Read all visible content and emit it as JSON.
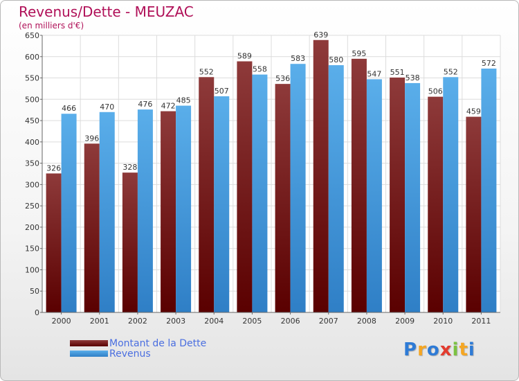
{
  "chart_data": {
    "type": "bar",
    "title": "Revenus/Dette - MEUZAC",
    "subtitle": "(en milliers d'€)",
    "categories": [
      "2000",
      "2001",
      "2002",
      "2003",
      "2004",
      "2005",
      "2006",
      "2007",
      "2008",
      "2009",
      "2010",
      "2011"
    ],
    "series": [
      {
        "name": "Montant de la Dette",
        "color": "#7a1a1a",
        "values": [
          326,
          396,
          328,
          472,
          552,
          589,
          536,
          639,
          595,
          551,
          506,
          459
        ]
      },
      {
        "name": "Revenus",
        "color": "#4a9ee0",
        "values": [
          466,
          470,
          476,
          485,
          507,
          558,
          583,
          580,
          547,
          538,
          552,
          572
        ]
      }
    ],
    "ylim": [
      0,
      650
    ],
    "yticks": [
      0,
      50,
      100,
      150,
      200,
      250,
      300,
      350,
      400,
      450,
      500,
      550,
      600,
      650
    ],
    "grid": true,
    "legend_position": "bottom-left"
  },
  "logo": {
    "letters": [
      "P",
      "r",
      "o",
      "x",
      "i",
      "t",
      "i"
    ],
    "colors": [
      "#2e7bd6",
      "#f5a623",
      "#2e7bd6",
      "#e33b2e",
      "#7cc242",
      "#f5a623",
      "#2e7bd6"
    ]
  }
}
